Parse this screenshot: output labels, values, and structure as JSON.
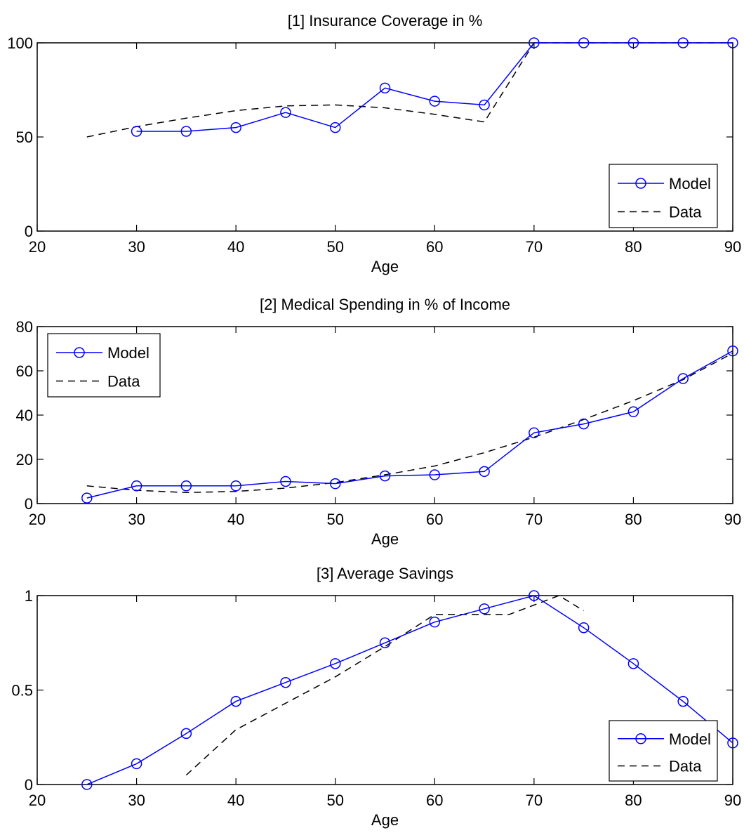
{
  "colors": {
    "model": "#0000ff",
    "data": "#000000",
    "axes": "#000000",
    "background": "#ffffff"
  },
  "chart_data": [
    {
      "type": "line",
      "title": "[1] Insurance Coverage in %",
      "xlabel": "Age",
      "ylabel": "",
      "xlim": [
        20,
        90
      ],
      "ylim": [
        0,
        100
      ],
      "xticks": [
        "20",
        "30",
        "40",
        "50",
        "60",
        "70",
        "80",
        "90"
      ],
      "yticks": [
        "0",
        "50",
        "100"
      ],
      "legend_position": "bottom-right",
      "legend": [
        "Model",
        "Data"
      ],
      "grid": false,
      "series": [
        {
          "name": "Model",
          "style": "solid-circle-markers",
          "x": [
            30,
            35,
            40,
            45,
            50,
            55,
            60,
            65,
            70,
            75,
            80,
            85,
            90
          ],
          "y": [
            53,
            53,
            55,
            63,
            55,
            76,
            69,
            67,
            100,
            100,
            100,
            100,
            100
          ]
        },
        {
          "name": "Data",
          "style": "dashed",
          "x": [
            25,
            30,
            35,
            40,
            45,
            50,
            55,
            60,
            65,
            70,
            75,
            80,
            85,
            90
          ],
          "y": [
            50,
            55.5,
            60,
            64,
            66.5,
            67,
            65.5,
            62,
            58,
            100,
            100,
            100,
            100,
            100
          ]
        }
      ]
    },
    {
      "type": "line",
      "title": "[2] Medical Spending in % of Income",
      "xlabel": "Age",
      "ylabel": "",
      "xlim": [
        20,
        90
      ],
      "ylim": [
        0,
        80
      ],
      "xticks": [
        "20",
        "30",
        "40",
        "50",
        "60",
        "70",
        "80",
        "90"
      ],
      "yticks": [
        "0",
        "20",
        "40",
        "60",
        "80"
      ],
      "legend_position": "top-left",
      "legend": [
        "Model",
        "Data"
      ],
      "grid": false,
      "series": [
        {
          "name": "Model",
          "style": "solid-circle-markers",
          "x": [
            25,
            30,
            35,
            40,
            45,
            50,
            55,
            60,
            65,
            70,
            75,
            80,
            85,
            90
          ],
          "y": [
            2.5,
            8,
            8,
            8,
            10,
            9,
            12.5,
            13,
            14.5,
            32,
            36,
            41.5,
            56.5,
            69
          ]
        },
        {
          "name": "Data",
          "style": "dashed",
          "x": [
            25,
            30,
            35,
            40,
            45,
            50,
            55,
            60,
            65,
            70,
            75,
            80,
            85,
            90
          ],
          "y": [
            8,
            6,
            5,
            5.5,
            7,
            9.5,
            13,
            17,
            23,
            30,
            38,
            46.5,
            56,
            68
          ]
        }
      ]
    },
    {
      "type": "line",
      "title": "[3] Average Savings",
      "xlabel": "Age",
      "ylabel": "",
      "xlim": [
        20,
        90
      ],
      "ylim": [
        0,
        1
      ],
      "xticks": [
        "20",
        "30",
        "40",
        "50",
        "60",
        "70",
        "80",
        "90"
      ],
      "yticks": [
        "0",
        "0.5",
        "1"
      ],
      "legend_position": "bottom-right",
      "legend": [
        "Model",
        "Data"
      ],
      "grid": false,
      "series": [
        {
          "name": "Model",
          "style": "solid-circle-markers",
          "x": [
            25,
            30,
            35,
            40,
            45,
            50,
            55,
            60,
            65,
            70,
            75,
            80,
            85,
            90
          ],
          "y": [
            0,
            0.11,
            0.27,
            0.44,
            0.54,
            0.64,
            0.75,
            0.86,
            0.93,
            1.0,
            0.83,
            0.64,
            0.44,
            0.22
          ]
        },
        {
          "name": "Data",
          "style": "dashed",
          "x": [
            35,
            40,
            45,
            50,
            55,
            60,
            65,
            67.5,
            70,
            72.5,
            75
          ],
          "y": [
            0.05,
            0.29,
            0.43,
            0.57,
            0.73,
            0.9,
            0.9,
            0.9,
            0.95,
            1.0,
            0.92
          ]
        }
      ]
    }
  ]
}
